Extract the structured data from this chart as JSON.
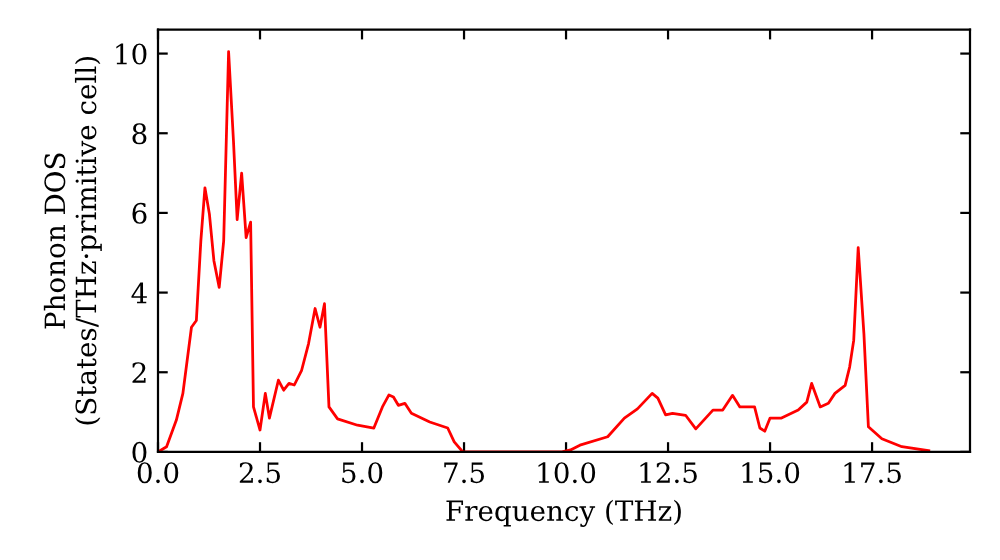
{
  "chart_data": {
    "type": "line",
    "xlabel": "Frequency (THz)",
    "ylabel": "Phonon DOS\n(States/THz·primitive cell)",
    "xlim": [
      0,
      19.9
    ],
    "ylim": [
      0,
      10.6
    ],
    "xticks": [
      {
        "value": 0,
        "label": "0.0"
      },
      {
        "value": 2.5,
        "label": "2.5"
      },
      {
        "value": 5,
        "label": "5.0"
      },
      {
        "value": 7.5,
        "label": "7.5"
      },
      {
        "value": 10,
        "label": "10.0"
      },
      {
        "value": 12.5,
        "label": "12.5"
      },
      {
        "value": 15,
        "label": "15.0"
      },
      {
        "value": 17.5,
        "label": "17.5"
      }
    ],
    "yticks": [
      0,
      2,
      4,
      6,
      8,
      10
    ],
    "grid": false,
    "marker": "none",
    "line_style": "solid",
    "series": [
      {
        "color": "#ff0000",
        "x": [
          0,
          0.21,
          0.45,
          0.61,
          0.82,
          0.94,
          1.05,
          1.15,
          1.26,
          1.37,
          1.5,
          1.61,
          1.73,
          1.85,
          1.94,
          2.05,
          2.16,
          2.27,
          2.34,
          2.5,
          2.63,
          2.73,
          2.95,
          3.08,
          3.21,
          3.34,
          3.52,
          3.69,
          3.85,
          3.97,
          4.08,
          4.19,
          4.4,
          4.89,
          5.29,
          5.5,
          5.66,
          5.77,
          5.89,
          6.05,
          6.21,
          6.66,
          7.1,
          7.26,
          7.47,
          9.9,
          10.11,
          10.34,
          11.02,
          11.43,
          11.75,
          12.11,
          12.25,
          12.44,
          12.61,
          12.93,
          13.18,
          13.6,
          13.84,
          14.08,
          14.26,
          14.62,
          14.75,
          14.87,
          15.0,
          15.28,
          15.69,
          15.9,
          16.02,
          16.23,
          16.43,
          16.59,
          16.84,
          16.95,
          17.05,
          17.16,
          17.3,
          17.41,
          17.74,
          18.23,
          18.89
        ],
        "values": [
          0,
          0.13,
          0.8,
          1.47,
          3.13,
          3.3,
          5.3,
          6.63,
          5.97,
          4.8,
          4.13,
          5.3,
          10.05,
          7.8,
          5.83,
          7.0,
          5.38,
          5.77,
          1.13,
          0.55,
          1.47,
          0.85,
          1.8,
          1.55,
          1.72,
          1.68,
          2.05,
          2.72,
          3.6,
          3.13,
          3.72,
          1.13,
          0.83,
          0.67,
          0.6,
          1.13,
          1.43,
          1.38,
          1.17,
          1.22,
          0.97,
          0.75,
          0.6,
          0.25,
          0,
          0,
          0.05,
          0.17,
          0.38,
          0.85,
          1.08,
          1.47,
          1.35,
          0.93,
          0.97,
          0.92,
          0.58,
          1.05,
          1.05,
          1.42,
          1.13,
          1.13,
          0.6,
          0.52,
          0.85,
          0.85,
          1.05,
          1.25,
          1.72,
          1.13,
          1.22,
          1.47,
          1.67,
          2.13,
          2.8,
          5.13,
          2.97,
          0.63,
          0.33,
          0.13,
          0.03
        ]
      }
    ]
  }
}
